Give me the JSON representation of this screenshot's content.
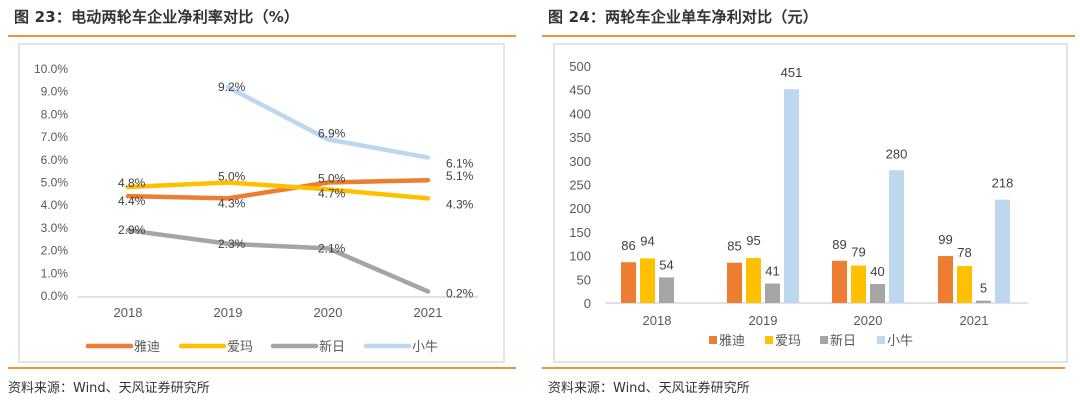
{
  "left": {
    "title": "图 23：电动两轮车企业净利率对比（%）",
    "source": "资料来源：Wind、天风证券研究所"
  },
  "right": {
    "title": "图 24：两轮车企业单车净利对比（元）",
    "source": "资料来源：Wind、天风证券研究所"
  },
  "colors": {
    "雅迪": "#ed7d31",
    "爱玛": "#ffc000",
    "新日": "#a5a5a5",
    "小牛": "#bdd7ee",
    "accent_rule": "#f0913a"
  },
  "chart_data": [
    {
      "type": "line",
      "title": "电动两轮车企业净利率对比（%）",
      "xlabel": "",
      "ylabel": "",
      "categories": [
        "2018",
        "2019",
        "2020",
        "2021"
      ],
      "ylim": [
        0,
        10
      ],
      "yticks": [
        "0.0%",
        "1.0%",
        "2.0%",
        "3.0%",
        "4.0%",
        "5.0%",
        "6.0%",
        "7.0%",
        "8.0%",
        "9.0%",
        "10.0%"
      ],
      "grid": false,
      "legend": "bottom",
      "series": [
        {
          "name": "雅迪",
          "values": [
            4.4,
            4.3,
            5.0,
            5.1
          ],
          "labels": [
            "4.4%",
            "4.3%",
            "5.0%",
            "5.1%"
          ]
        },
        {
          "name": "爱玛",
          "values": [
            4.8,
            5.0,
            4.7,
            4.3
          ],
          "labels": [
            "4.8%",
            "5.0%",
            "4.7%",
            "4.3%"
          ]
        },
        {
          "name": "新日",
          "values": [
            2.9,
            2.3,
            2.1,
            0.2
          ],
          "labels": [
            "2.9%",
            "2.3%",
            "2.1%",
            "0.2%"
          ]
        },
        {
          "name": "小牛",
          "values": [
            null,
            9.2,
            6.9,
            6.1
          ],
          "labels": [
            null,
            "9.2%",
            "6.9%",
            "6.1%"
          ]
        }
      ]
    },
    {
      "type": "bar",
      "title": "两轮车企业单车净利对比（元）",
      "xlabel": "",
      "ylabel": "",
      "categories": [
        "2018",
        "2019",
        "2020",
        "2021"
      ],
      "ylim": [
        0,
        500
      ],
      "yticks": [
        "0",
        "50",
        "100",
        "150",
        "200",
        "250",
        "300",
        "350",
        "400",
        "450",
        "500"
      ],
      "grid": false,
      "legend": "bottom",
      "series": [
        {
          "name": "雅迪",
          "values": [
            86,
            85,
            89,
            99
          ]
        },
        {
          "name": "爱玛",
          "values": [
            94,
            95,
            79,
            78
          ]
        },
        {
          "name": "新日",
          "values": [
            54,
            41,
            40,
            5
          ]
        },
        {
          "name": "小牛",
          "values": [
            null,
            451,
            280,
            218
          ]
        }
      ]
    }
  ]
}
